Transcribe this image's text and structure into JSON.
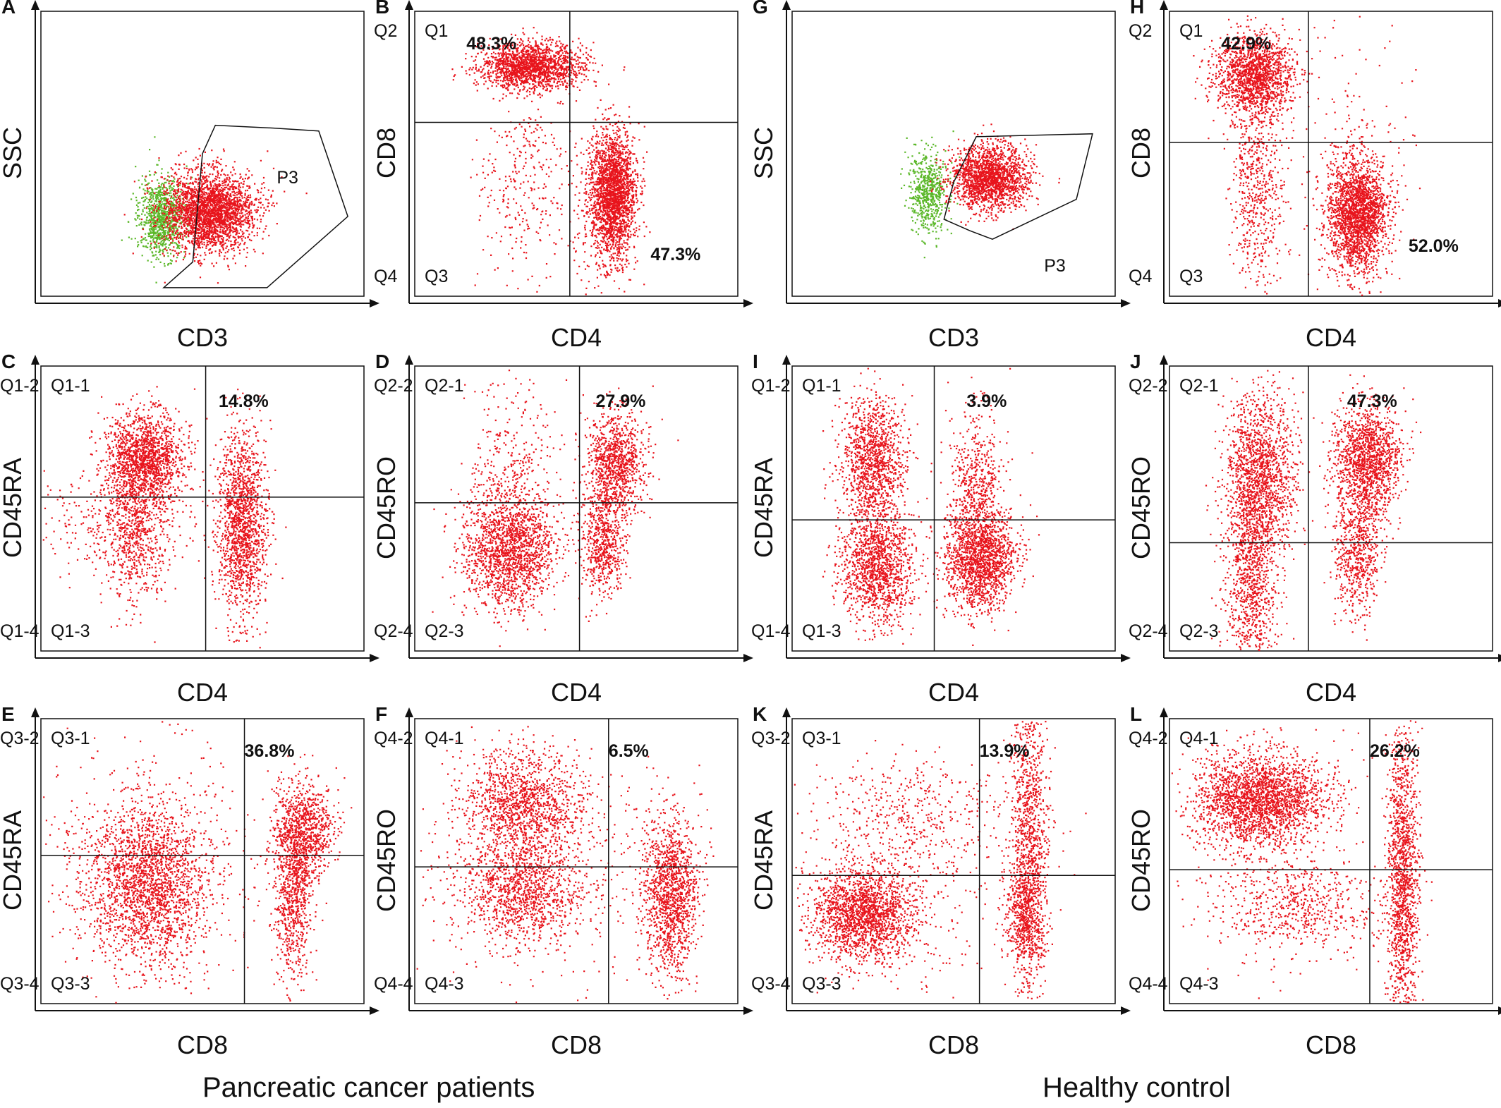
{
  "group_labels": {
    "left": "Pancreatic cancer patients",
    "right": "Healthy control"
  },
  "colors": {
    "events": "#e8141c",
    "gated_out": "#5cb82a",
    "lines": "#111111"
  },
  "chart_data": [
    {
      "id": "A",
      "type": "scatter",
      "xlabel": "CD3",
      "ylabel": "SSC",
      "gate": "P3",
      "quadrant_labels": [],
      "percentages": []
    },
    {
      "id": "B",
      "type": "scatter",
      "xlabel": "CD4",
      "ylabel": "CD8",
      "quadrant_labels": [
        "Q1",
        "Q2",
        "Q3",
        "Q4"
      ],
      "percentages": [
        {
          "quadrant": "Q1",
          "value": "48.3%"
        },
        {
          "quadrant": "Q4",
          "value": "47.3%"
        }
      ]
    },
    {
      "id": "C",
      "type": "scatter",
      "xlabel": "CD4",
      "ylabel": "CD45RA",
      "quadrant_labels": [
        "Q1-1",
        "Q1-2",
        "Q1-3",
        "Q1-4"
      ],
      "percentages": [
        {
          "quadrant": "Q1-2",
          "value": "14.8%"
        }
      ]
    },
    {
      "id": "D",
      "type": "scatter",
      "xlabel": "CD4",
      "ylabel": "CD45RO",
      "quadrant_labels": [
        "Q2-1",
        "Q2-2",
        "Q2-3",
        "Q2-4"
      ],
      "percentages": [
        {
          "quadrant": "Q2-2",
          "value": "27.9%"
        }
      ]
    },
    {
      "id": "E",
      "type": "scatter",
      "xlabel": "CD8",
      "ylabel": "CD45RA",
      "quadrant_labels": [
        "Q3-1",
        "Q3-2",
        "Q3-3",
        "Q3-4"
      ],
      "percentages": [
        {
          "quadrant": "Q3-2",
          "value": "36.8%"
        }
      ]
    },
    {
      "id": "F",
      "type": "scatter",
      "xlabel": "CD8",
      "ylabel": "CD45RO",
      "quadrant_labels": [
        "Q4-1",
        "Q4-2",
        "Q4-3",
        "Q4-4"
      ],
      "percentages": [
        {
          "quadrant": "Q4-2",
          "value": "6.5%"
        }
      ]
    },
    {
      "id": "G",
      "type": "scatter",
      "xlabel": "CD3",
      "ylabel": "SSC",
      "gate": "P3",
      "quadrant_labels": [],
      "percentages": []
    },
    {
      "id": "H",
      "type": "scatter",
      "xlabel": "CD4",
      "ylabel": "CD8",
      "quadrant_labels": [
        "Q1",
        "Q2",
        "Q3",
        "Q4"
      ],
      "percentages": [
        {
          "quadrant": "Q1",
          "value": "42.9%"
        },
        {
          "quadrant": "Q4",
          "value": "52.0%"
        }
      ]
    },
    {
      "id": "I",
      "type": "scatter",
      "xlabel": "CD4",
      "ylabel": "CD45RA",
      "quadrant_labels": [
        "Q1-1",
        "Q1-2",
        "Q1-3",
        "Q1-4"
      ],
      "percentages": [
        {
          "quadrant": "Q1-2",
          "value": "3.9%"
        }
      ]
    },
    {
      "id": "J",
      "type": "scatter",
      "xlabel": "CD4",
      "ylabel": "CD45RO",
      "quadrant_labels": [
        "Q2-1",
        "Q2-2",
        "Q2-3",
        "Q2-4"
      ],
      "percentages": [
        {
          "quadrant": "Q2-2",
          "value": "47.3%"
        }
      ]
    },
    {
      "id": "K",
      "type": "scatter",
      "xlabel": "CD8",
      "ylabel": "CD45RA",
      "quadrant_labels": [
        "Q3-1",
        "Q3-2",
        "Q3-3",
        "Q3-4"
      ],
      "percentages": [
        {
          "quadrant": "Q3-2",
          "value": "13.9%"
        }
      ]
    },
    {
      "id": "L",
      "type": "scatter",
      "xlabel": "CD8",
      "ylabel": "CD45RO",
      "quadrant_labels": [
        "Q4-1",
        "Q4-2",
        "Q4-3",
        "Q4-4"
      ],
      "percentages": [
        {
          "quadrant": "Q4-2",
          "value": "26.2%"
        }
      ]
    }
  ]
}
